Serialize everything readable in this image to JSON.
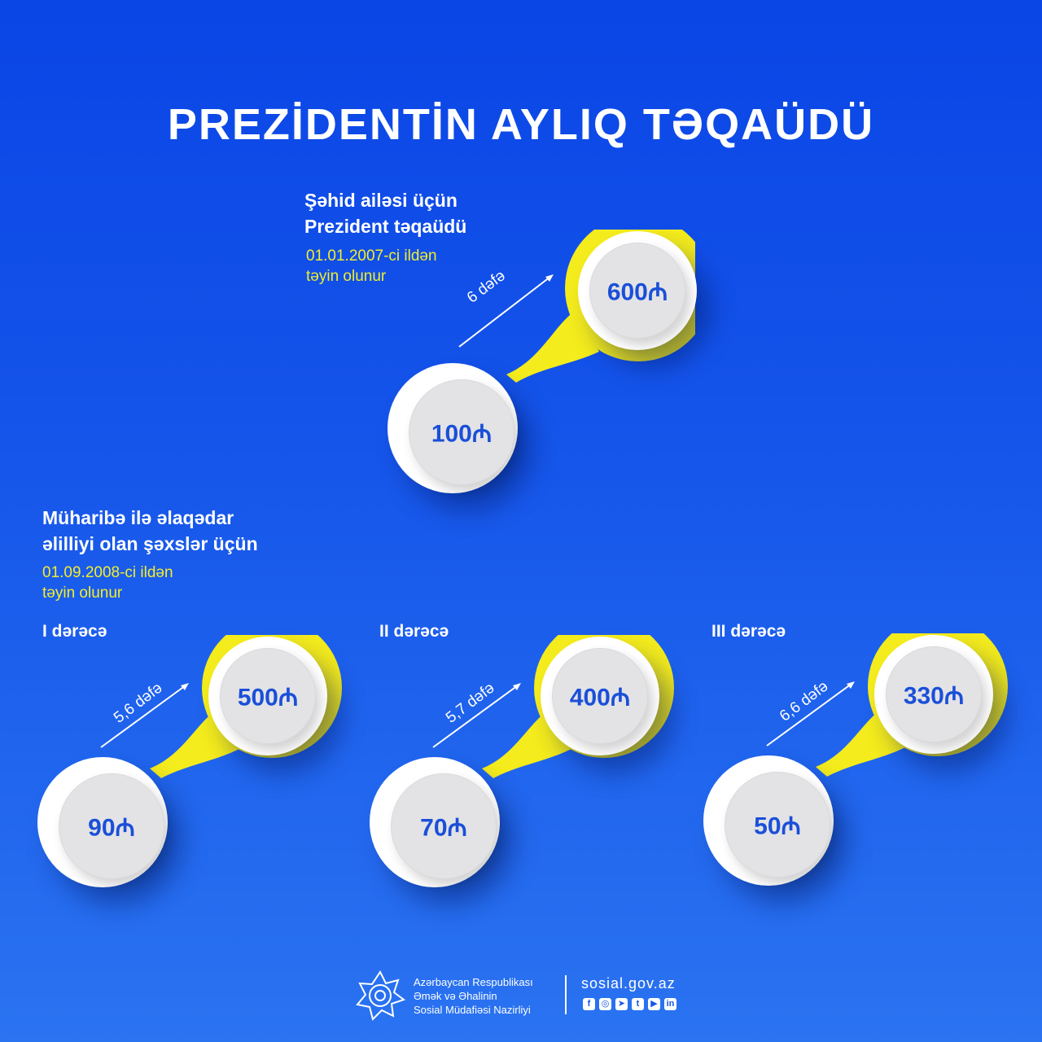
{
  "title": "PREZİDENTİN AYLIQ TƏQAÜDÜ",
  "currency_symbol": "₼",
  "accent_yellow": "#f4ec1c",
  "value_blue": "#1a4fd8",
  "martyr_section": {
    "heading_line1": "Şəhid ailəsi üçün",
    "heading_line2": "Prezident təqaüdü",
    "since_line1": "01.01.2007-ci ildən",
    "since_line2": "təyin olunur",
    "from_value": "100₼",
    "to_value": "600₼",
    "multiplier": "6 dəfə"
  },
  "war_disability_section": {
    "heading_line1": "Müharibə ilə əlaqədar",
    "heading_line2": "əlilliyi olan şəxslər üçün",
    "since_line1": "01.09.2008-ci ildən",
    "since_line2": "təyin olunur",
    "degrees": [
      {
        "label": "I dərəcə",
        "from_value": "90₼",
        "to_value": "500₼",
        "multiplier": "5,6 dəfə"
      },
      {
        "label": "II dərəcə",
        "from_value": "70₼",
        "to_value": "400₼",
        "multiplier": "5,7 dəfə"
      },
      {
        "label": "III dərəcə",
        "from_value": "50₼",
        "to_value": "330₼",
        "multiplier": "6,6 dəfə"
      }
    ]
  },
  "footer": {
    "ministry_line1": "Azərbaycan Respublikası",
    "ministry_line2": "Əmək və Əhalinin",
    "ministry_line3": "Sosial Müdafiəsi Nazirliyi",
    "website": "sosial.gov.az",
    "social_icons": [
      "facebook-icon",
      "instagram-icon",
      "telegram-icon",
      "twitter-icon",
      "youtube-icon",
      "linkedin-icon"
    ]
  }
}
